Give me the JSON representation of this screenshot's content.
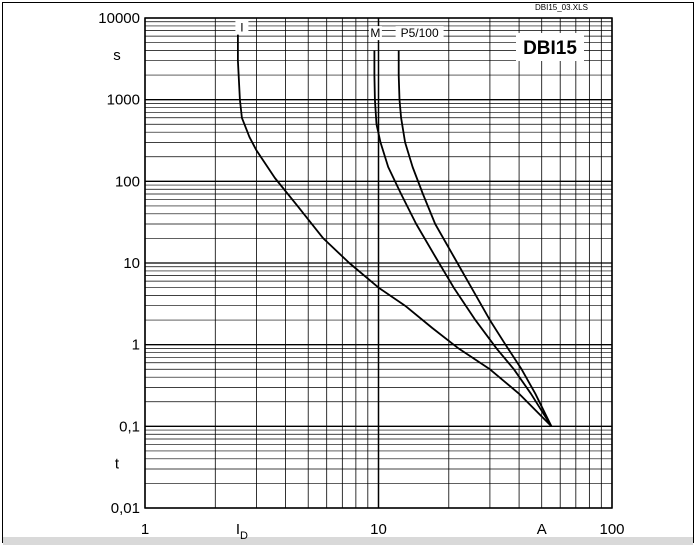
{
  "chart_data": {
    "type": "line",
    "title": "DBI15",
    "file_tag": "DBI15_03.XLS",
    "xscale": "log",
    "yscale": "log",
    "xlim": [
      1,
      100
    ],
    "ylim": [
      0.01,
      10000
    ],
    "grid": true,
    "x_ticks": [
      {
        "value": 1,
        "label": "1"
      },
      {
        "value": 10,
        "label": "10"
      },
      {
        "value": 100,
        "label": "100"
      }
    ],
    "y_ticks": [
      {
        "value": 10000,
        "label": "10000"
      },
      {
        "value": 1000,
        "label": "1000"
      },
      {
        "value": 100,
        "label": "100"
      },
      {
        "value": 10,
        "label": "10"
      },
      {
        "value": 1,
        "label": "1"
      },
      {
        "value": 0.1,
        "label": "0,1"
      },
      {
        "value": 0.01,
        "label": "0,01"
      }
    ],
    "x_unit_labels": [
      {
        "text": "I",
        "sub": "D",
        "at": 2.6
      },
      {
        "text": "A",
        "at": 50
      }
    ],
    "y_unit_labels": [
      {
        "text": "s",
        "at": 3500
      },
      {
        "text": "t",
        "at": 0.035
      }
    ],
    "series": [
      {
        "name": "I",
        "label_at": {
          "x": 2.6,
          "y": 7000
        },
        "points": [
          [
            2.5,
            6500
          ],
          [
            2.5,
            3000
          ],
          [
            2.55,
            1000
          ],
          [
            2.6,
            600
          ],
          [
            2.8,
            350
          ],
          [
            3.0,
            240
          ],
          [
            3.6,
            110
          ],
          [
            4.5,
            50
          ],
          [
            5.8,
            20
          ],
          [
            7.5,
            10
          ],
          [
            10,
            5
          ],
          [
            13,
            3
          ],
          [
            17,
            1.6
          ],
          [
            22,
            0.9
          ],
          [
            30,
            0.5
          ],
          [
            40,
            0.25
          ],
          [
            55,
            0.1
          ]
        ]
      },
      {
        "name": "M",
        "label_at": {
          "x": 9.7,
          "y": 6000
        },
        "points": [
          [
            9.6,
            4000
          ],
          [
            9.6,
            2000
          ],
          [
            9.65,
            1000
          ],
          [
            9.8,
            500
          ],
          [
            10.2,
            300
          ],
          [
            11,
            150
          ],
          [
            12.5,
            70
          ],
          [
            14.5,
            30
          ],
          [
            17.5,
            12
          ],
          [
            21,
            5
          ],
          [
            26,
            2
          ],
          [
            32,
            0.9
          ],
          [
            38,
            0.5
          ],
          [
            45,
            0.25
          ],
          [
            55,
            0.1
          ]
        ]
      },
      {
        "name": "P5/100",
        "label_at": {
          "x": 15,
          "y": 6000
        },
        "points": [
          [
            12.2,
            4000
          ],
          [
            12.2,
            2000
          ],
          [
            12.3,
            1000
          ],
          [
            12.5,
            600
          ],
          [
            13,
            300
          ],
          [
            14,
            150
          ],
          [
            15.5,
            70
          ],
          [
            17.5,
            30
          ],
          [
            21,
            12
          ],
          [
            25,
            5
          ],
          [
            30,
            2
          ],
          [
            35,
            1
          ],
          [
            41,
            0.5
          ],
          [
            47,
            0.25
          ],
          [
            55,
            0.1
          ]
        ]
      }
    ]
  }
}
